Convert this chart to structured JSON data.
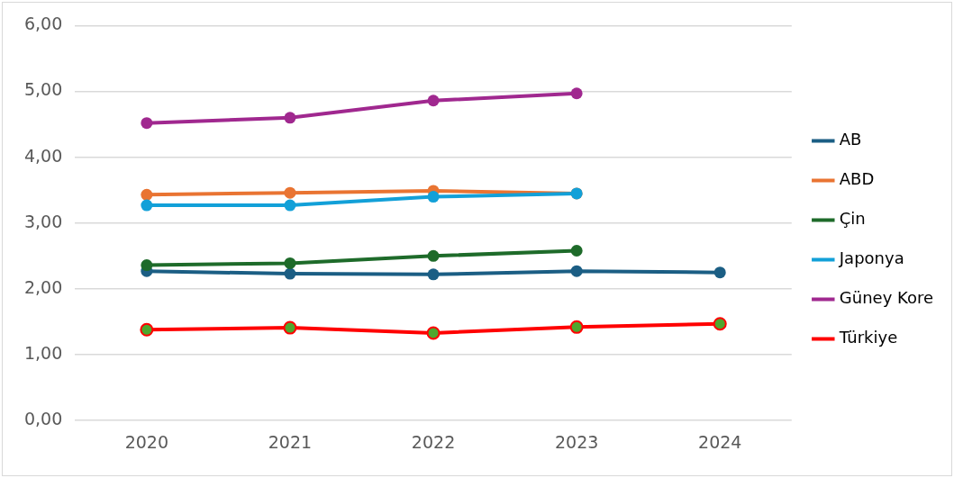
{
  "chart_data": {
    "type": "line",
    "categories": [
      "2020",
      "2021",
      "2022",
      "2023",
      "2024"
    ],
    "ylim": [
      0,
      6
    ],
    "yticks": [
      {
        "value": 0,
        "label": "0,00"
      },
      {
        "value": 1,
        "label": "1,00"
      },
      {
        "value": 2,
        "label": "2,00"
      },
      {
        "value": 3,
        "label": "3,00"
      },
      {
        "value": 4,
        "label": "4,00"
      },
      {
        "value": 5,
        "label": "5,00"
      },
      {
        "value": 6,
        "label": "6,00"
      }
    ],
    "grid": "y",
    "legend": "right",
    "marker": "circle",
    "series": [
      {
        "name": "AB",
        "color": "#1b5e84",
        "values": [
          2.27,
          2.23,
          2.22,
          2.27,
          2.25
        ]
      },
      {
        "name": "ABD",
        "color": "#e97432",
        "values": [
          3.43,
          3.46,
          3.49,
          3.45,
          null
        ]
      },
      {
        "name": "Çin",
        "color": "#1e6b2a",
        "values": [
          2.36,
          2.39,
          2.5,
          2.58,
          null
        ]
      },
      {
        "name": "Japonya",
        "color": "#12a0d8",
        "values": [
          3.27,
          3.27,
          3.4,
          3.45,
          null
        ]
      },
      {
        "name": "Güney Kore",
        "color": "#a0288f",
        "values": [
          4.52,
          4.6,
          4.86,
          4.97,
          null
        ]
      },
      {
        "name": "Türkiye",
        "color": "#ff0000",
        "colors": [
          "#4ea72e",
          "#4ea72e",
          "#4ea72e",
          "#4ea72e",
          "#4ea72e"
        ],
        "values": [
          1.38,
          1.41,
          1.33,
          1.42,
          1.47
        ]
      }
    ]
  }
}
